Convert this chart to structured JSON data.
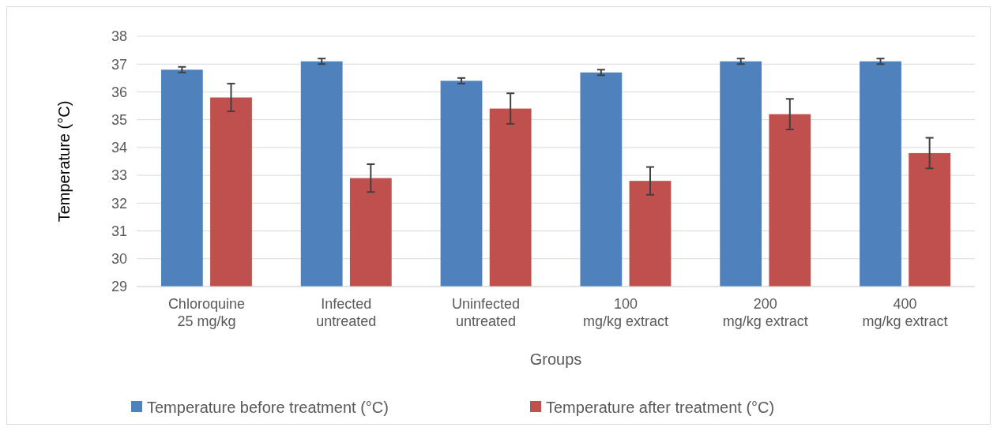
{
  "chart_data": {
    "type": "bar",
    "xlabel": "Groups",
    "ylabel": "Temperature (°C)",
    "categories": [
      "Chloroquine 25 mg/kg",
      "Infected untreated",
      "Uninfected untreated",
      "100 mg/kg extract",
      "200 mg/kg extract",
      "400 mg/kg extract"
    ],
    "series": [
      {
        "name": "Temperature before treatment (°C)",
        "color": "#4f81bd",
        "values": [
          36.8,
          37.1,
          36.4,
          36.7,
          37.1,
          37.1
        ],
        "errors": [
          0.1,
          0.1,
          0.1,
          0.1,
          0.1,
          0.1
        ]
      },
      {
        "name": "Temperature after treatment (°C)",
        "color": "#c0504d",
        "values": [
          35.8,
          32.9,
          35.4,
          32.8,
          35.2,
          33.8
        ],
        "errors": [
          0.5,
          0.5,
          0.55,
          0.5,
          0.55,
          0.55
        ]
      }
    ],
    "ylim": [
      29,
      38
    ],
    "yticks": [
      29,
      30,
      31,
      32,
      33,
      34,
      35,
      36,
      37,
      38
    ],
    "grid": "y",
    "legend": "bottom"
  }
}
